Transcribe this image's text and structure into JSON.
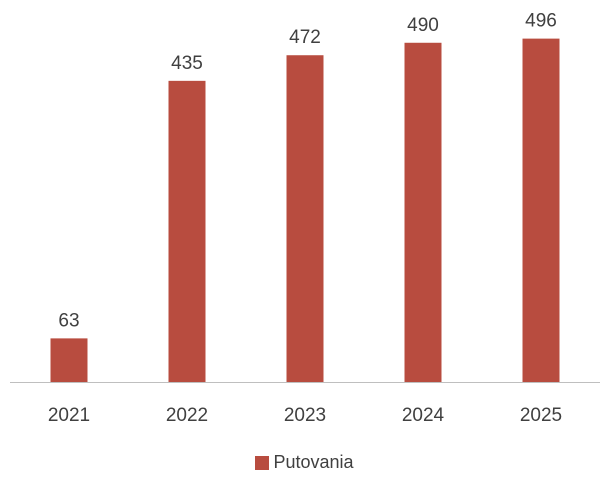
{
  "chart_data": {
    "type": "bar",
    "categories": [
      "2021",
      "2022",
      "2023",
      "2024",
      "2025"
    ],
    "series": [
      {
        "name": "Putovania",
        "values": [
          63,
          435,
          472,
          490,
          496
        ]
      }
    ],
    "title": "",
    "xlabel": "",
    "ylabel": "",
    "ylim": [
      0,
      520
    ],
    "grid": false,
    "legend": "bottom",
    "color": "#B84C3F",
    "axis_color": "#BFBFBF",
    "text_color": "#404040"
  }
}
